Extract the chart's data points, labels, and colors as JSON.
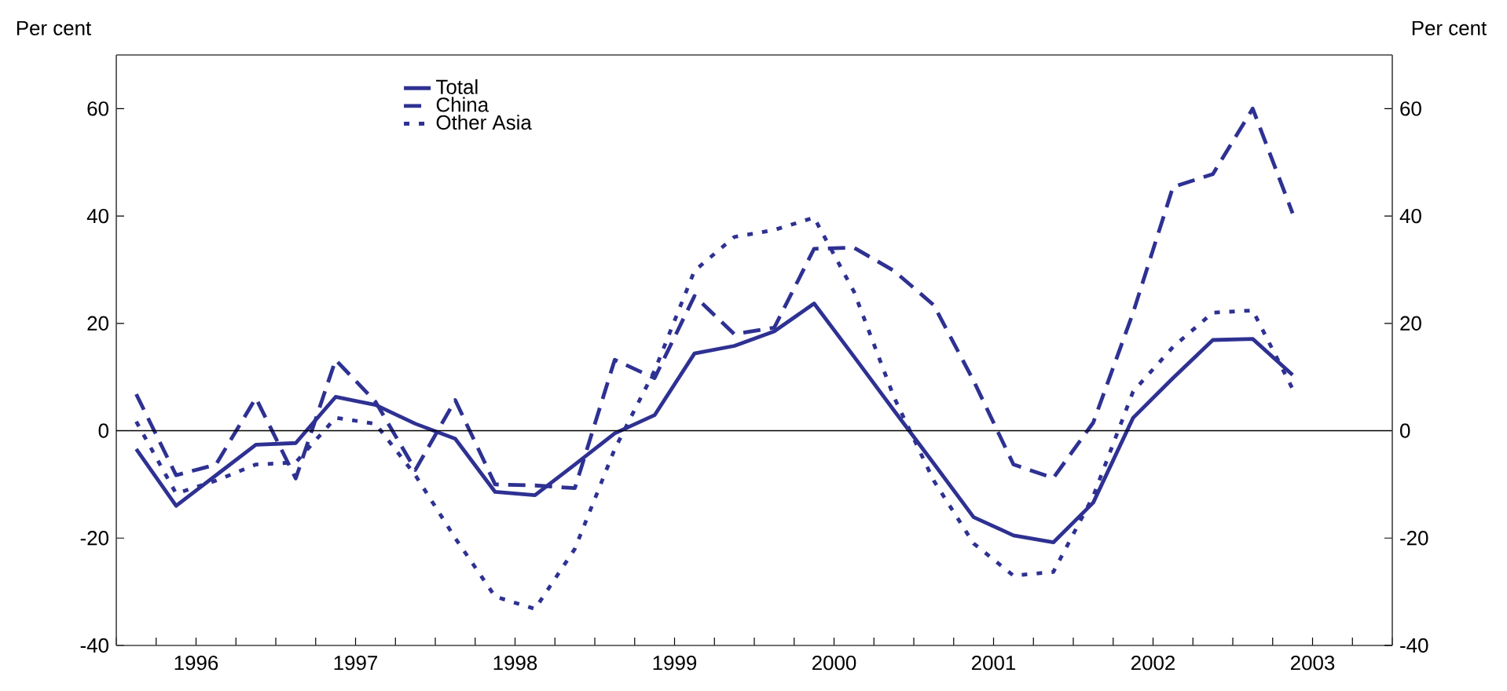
{
  "chart_data": {
    "type": "line",
    "ylabel": "Per cent",
    "y2label": "Per cent",
    "x": [
      1996.125,
      1996.375,
      1996.625,
      1996.875,
      1997.125,
      1997.375,
      1997.625,
      1997.875,
      1998.125,
      1998.375,
      1998.625,
      1998.875,
      1999.125,
      1999.375,
      1999.625,
      1999.875,
      2000.125,
      2000.375,
      2000.625,
      2000.875,
      2001.125,
      2001.375,
      2001.625,
      2001.875,
      2002.125,
      2002.375,
      2002.625,
      2002.875,
      2003.125,
      2003.375
    ],
    "series": [
      {
        "name": "Total",
        "color": "#2e3192",
        "line_style": "solid",
        "values": [
          -3.4,
          -14,
          -8.3,
          -2.6,
          -2.3,
          6.3,
          4.8,
          1.3,
          -1.5,
          -11.4,
          -12,
          -6.3,
          -0.5,
          2.9,
          14.4,
          15.8,
          18.5,
          23.7,
          13.8,
          3.8,
          -6.1,
          -16.1,
          -19.5,
          -20.8,
          -13.4,
          2.4,
          9.8,
          16.9,
          17.1,
          10.4
        ]
      },
      {
        "name": "China",
        "color": "#2e3192",
        "line_style": "dashed",
        "values": [
          6.8,
          -8.3,
          -6.3,
          6.1,
          -8.9,
          13.2,
          5.4,
          -7.3,
          5.7,
          -10,
          -10.2,
          -10.7,
          13.2,
          9.8,
          25.1,
          18,
          19.2,
          33.9,
          34.1,
          29.8,
          23.4,
          9.3,
          -6.3,
          -8.8,
          1.5,
          22,
          45.4,
          47.8,
          60,
          40.5
        ]
      },
      {
        "name": "Other Asia",
        "color": "#2e3192",
        "line_style": "dotted",
        "values": [
          1.7,
          -11.7,
          -9.3,
          -6.3,
          -5.9,
          2.4,
          1.3,
          -8.3,
          -20,
          -30.9,
          -33.2,
          -22,
          -3.4,
          11.2,
          29.8,
          36.1,
          37.4,
          39.7,
          25.9,
          6.3,
          -9.3,
          -21,
          -27,
          -26.3,
          -12.2,
          7.3,
          15.6,
          22,
          22.4,
          7.8
        ]
      }
    ],
    "xlim": [
      1996,
      2004
    ],
    "xticks": [
      {
        "value": 1996,
        "label": null
      },
      {
        "value": 1996.25,
        "label": null
      },
      {
        "value": 1996.5,
        "label": "1996"
      },
      {
        "value": 1996.75,
        "label": null
      },
      {
        "value": 1997,
        "label": null
      },
      {
        "value": 1997.25,
        "label": null
      },
      {
        "value": 1997.5,
        "label": "1997"
      },
      {
        "value": 1997.75,
        "label": null
      },
      {
        "value": 1998,
        "label": null
      },
      {
        "value": 1998.25,
        "label": null
      },
      {
        "value": 1998.5,
        "label": "1998"
      },
      {
        "value": 1998.75,
        "label": null
      },
      {
        "value": 1999,
        "label": null
      },
      {
        "value": 1999.25,
        "label": null
      },
      {
        "value": 1999.5,
        "label": "1999"
      },
      {
        "value": 1999.75,
        "label": null
      },
      {
        "value": 2000,
        "label": null
      },
      {
        "value": 2000.25,
        "label": null
      },
      {
        "value": 2000.5,
        "label": "2000"
      },
      {
        "value": 2000.75,
        "label": null
      },
      {
        "value": 2001,
        "label": null
      },
      {
        "value": 2001.25,
        "label": null
      },
      {
        "value": 2001.5,
        "label": "2001"
      },
      {
        "value": 2001.75,
        "label": null
      },
      {
        "value": 2002,
        "label": null
      },
      {
        "value": 2002.25,
        "label": null
      },
      {
        "value": 2002.5,
        "label": "2002"
      },
      {
        "value": 2002.75,
        "label": null
      },
      {
        "value": 2003,
        "label": null
      },
      {
        "value": 2003.25,
        "label": null
      },
      {
        "value": 2003.5,
        "label": "2003"
      },
      {
        "value": 2003.75,
        "label": null
      },
      {
        "value": 2004,
        "label": null
      }
    ],
    "ylim": [
      -40,
      70
    ],
    "yticks": [
      -40,
      -20,
      0,
      20,
      40,
      60
    ],
    "y2lim": [
      -40,
      70
    ],
    "y2ticks": [
      -40,
      -20,
      0,
      20,
      40,
      60
    ],
    "ref_lines": [
      {
        "axis": "y",
        "value": 0,
        "color": "#000000"
      }
    ],
    "grid": false,
    "legend": "top left"
  }
}
